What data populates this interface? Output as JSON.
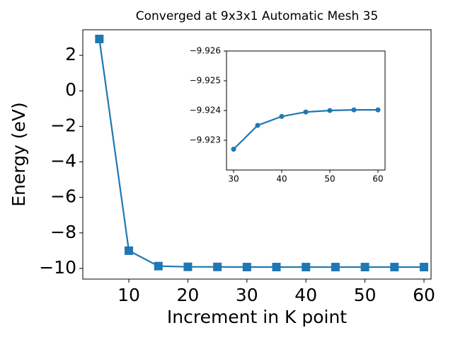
{
  "chart_data": [
    {
      "type": "line",
      "title": "Converged at 9x3x1 Automatic Mesh 35",
      "x_label": "Increment in K point",
      "y_label": "Energy (eV)",
      "x": [
        5,
        10,
        15,
        20,
        25,
        30,
        35,
        40,
        45,
        50,
        55,
        60
      ],
      "series": [
        {
          "color": "#1f77b4",
          "marker": "square",
          "values": [
            2.92,
            -9.0,
            -9.87,
            -9.91,
            -9.915,
            -9.9227,
            -9.9235,
            -9.9238,
            -9.92395,
            -9.924,
            -9.92402,
            -9.92402
          ]
        }
      ],
      "xlim": [
        2.2,
        61.2
      ],
      "ylim": [
        -10.6,
        3.44
      ],
      "xticks": [
        10,
        20,
        30,
        40,
        50,
        60
      ],
      "yticks": [
        {
          "value": -10,
          "label": "−10"
        },
        {
          "value": -8,
          "label": "−8"
        },
        {
          "value": -6,
          "label": "−6"
        },
        {
          "value": -4,
          "label": "−4"
        },
        {
          "value": -2,
          "label": "−2"
        },
        0,
        2
      ]
    },
    {
      "type": "line",
      "x": [
        30,
        35,
        40,
        45,
        50,
        55,
        60
      ],
      "series": [
        {
          "color": "#1f77b4",
          "marker": "circle",
          "values": [
            -9.9227,
            -9.9235,
            -9.9238,
            -9.92395,
            -9.924,
            -9.92402,
            -9.92402
          ]
        }
      ],
      "xlim": [
        28.53,
        61.47
      ],
      "ylim": [
        -9.922,
        -9.926
      ],
      "xticks": [
        30,
        40,
        50,
        60
      ],
      "yticks": [
        {
          "value": -9.923,
          "label": "−9.923"
        },
        {
          "value": -9.924,
          "label": "−9.924"
        },
        {
          "value": -9.925,
          "label": "−9.925"
        },
        {
          "value": -9.926,
          "label": "−9.926"
        }
      ]
    }
  ]
}
